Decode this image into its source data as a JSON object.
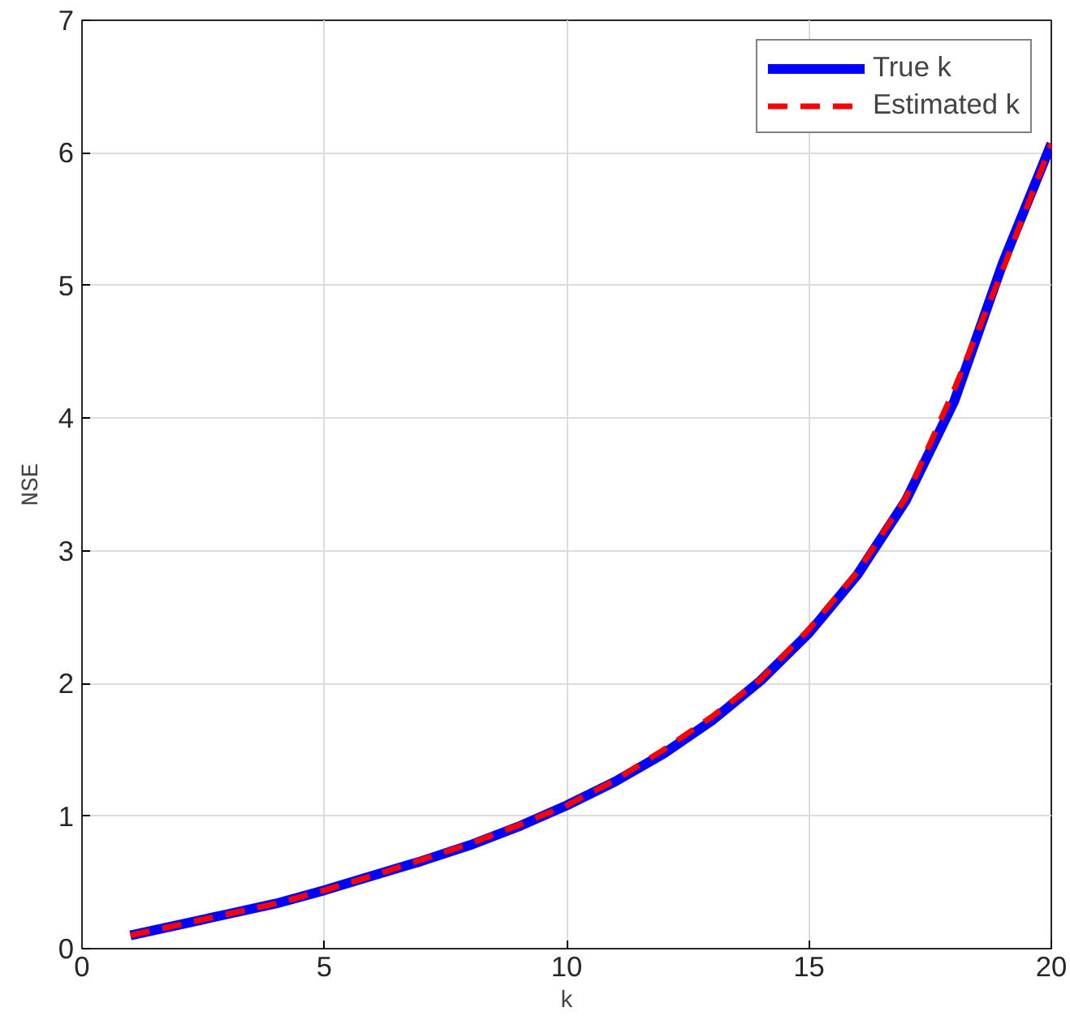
{
  "chart_data": {
    "type": "line",
    "xlabel": "k",
    "ylabel": "NSE",
    "x": [
      1,
      2,
      3,
      4,
      5,
      6,
      7,
      8,
      9,
      10,
      11,
      12,
      13,
      14,
      15,
      16,
      17,
      18,
      19,
      20
    ],
    "series": [
      {
        "name": "True k",
        "color": "#0000ff",
        "line_style": "solid",
        "values": [
          0.1,
          0.18,
          0.26,
          0.34,
          0.44,
          0.55,
          0.66,
          0.78,
          0.92,
          1.08,
          1.26,
          1.47,
          1.72,
          2.02,
          2.38,
          2.82,
          3.38,
          4.13,
          5.17,
          6.07
        ]
      },
      {
        "name": "Estimated k",
        "color": "#ff0000",
        "line_style": "dashed",
        "values": [
          0.1,
          0.18,
          0.26,
          0.34,
          0.44,
          0.55,
          0.67,
          0.79,
          0.93,
          1.08,
          1.27,
          1.5,
          1.75,
          2.03,
          2.41,
          2.84,
          3.4,
          4.22,
          5.12,
          6.07
        ]
      }
    ],
    "xlim": [
      0,
      20
    ],
    "ylim": [
      0,
      7
    ],
    "xticks": [
      0,
      5,
      10,
      15,
      20
    ],
    "yticks": [
      0,
      1,
      2,
      3,
      4,
      5,
      6,
      7
    ],
    "grid": true,
    "legend": "top right",
    "marker": "none"
  }
}
